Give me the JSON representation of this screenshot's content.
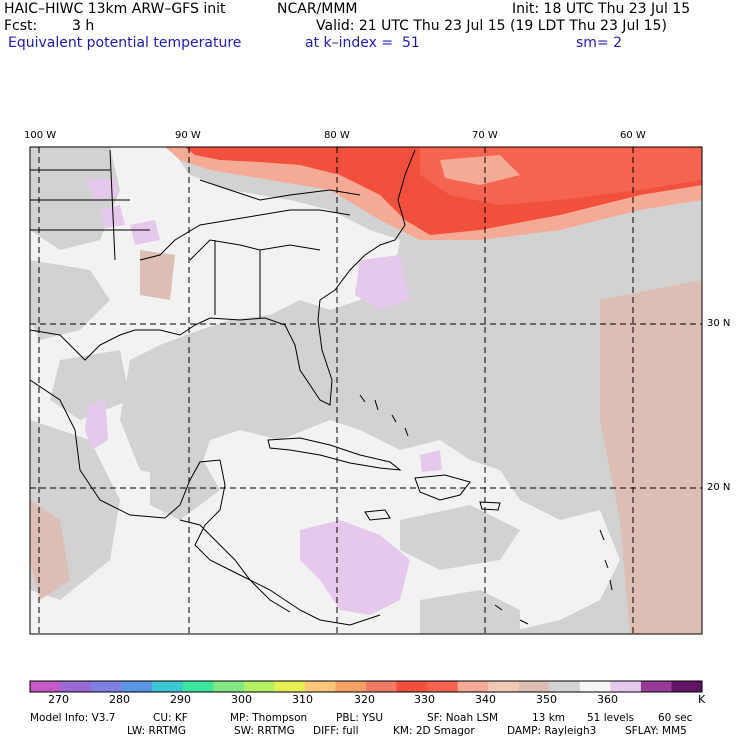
{
  "header": {
    "model": "HAIC–HIWC 13km ARW–GFS init",
    "center": "NCAR/MMM",
    "init": "Init: 18 UTC Thu 23 Jul 15",
    "fcst_label": "Fcst:",
    "fcst_value": "3 h",
    "valid": "Valid: 21 UTC Thu 23 Jul 15 (19 LDT Thu 23 Jul 15)",
    "field": "Equivalent potential temperature",
    "level": "at k–index =  51",
    "smooth": "sm= 2"
  },
  "map": {
    "lon_ticks": [
      {
        "label": "100 W",
        "lon": -100
      },
      {
        "label": "90 W",
        "lon": -90
      },
      {
        "label": "80 W",
        "lon": -80
      },
      {
        "label": "70 W",
        "lon": -70
      },
      {
        "label": "60 W",
        "lon": -60
      }
    ],
    "lat_ticks": [
      {
        "label": "30 N",
        "lat": 30
      },
      {
        "label": "20 N",
        "lat": 20
      }
    ]
  },
  "colorbar": {
    "colors": [
      "#c35ac8",
      "#9a6ad4",
      "#7f7fe6",
      "#5a96e6",
      "#3cc8d2",
      "#3ce6a0",
      "#82e682",
      "#b4f064",
      "#e6f050",
      "#fac878",
      "#f5a064",
      "#f07864",
      "#f0503c",
      "#f56450",
      "#f5aa96",
      "#f0c8b4",
      "#dcbeb4",
      "#d2d2d2",
      "#f5f5f5",
      "#e6c8ec",
      "#963c96",
      "#641464"
    ],
    "labels": [
      "270",
      "280",
      "290",
      "300",
      "310",
      "320",
      "330",
      "340",
      "350",
      "360"
    ],
    "unit": "K"
  },
  "footer": {
    "line1": {
      "model_info": "Model Info: V3.7",
      "cu": "CU: KF",
      "mp": "MP: Thompson",
      "pbl": "PBL: YSU",
      "sf": "SF: Noah LSM",
      "res": "13 km",
      "levels": "51 levels",
      "dt": "60 sec"
    },
    "line2": {
      "lw": "LW: RRTMG",
      "sw": "SW: RRTMG",
      "diff": "DIFF: full",
      "km": "KM: 2D Smagor",
      "damp": "DAMP: Rayleigh3",
      "sflay": "SFLAY: MM5"
    }
  }
}
